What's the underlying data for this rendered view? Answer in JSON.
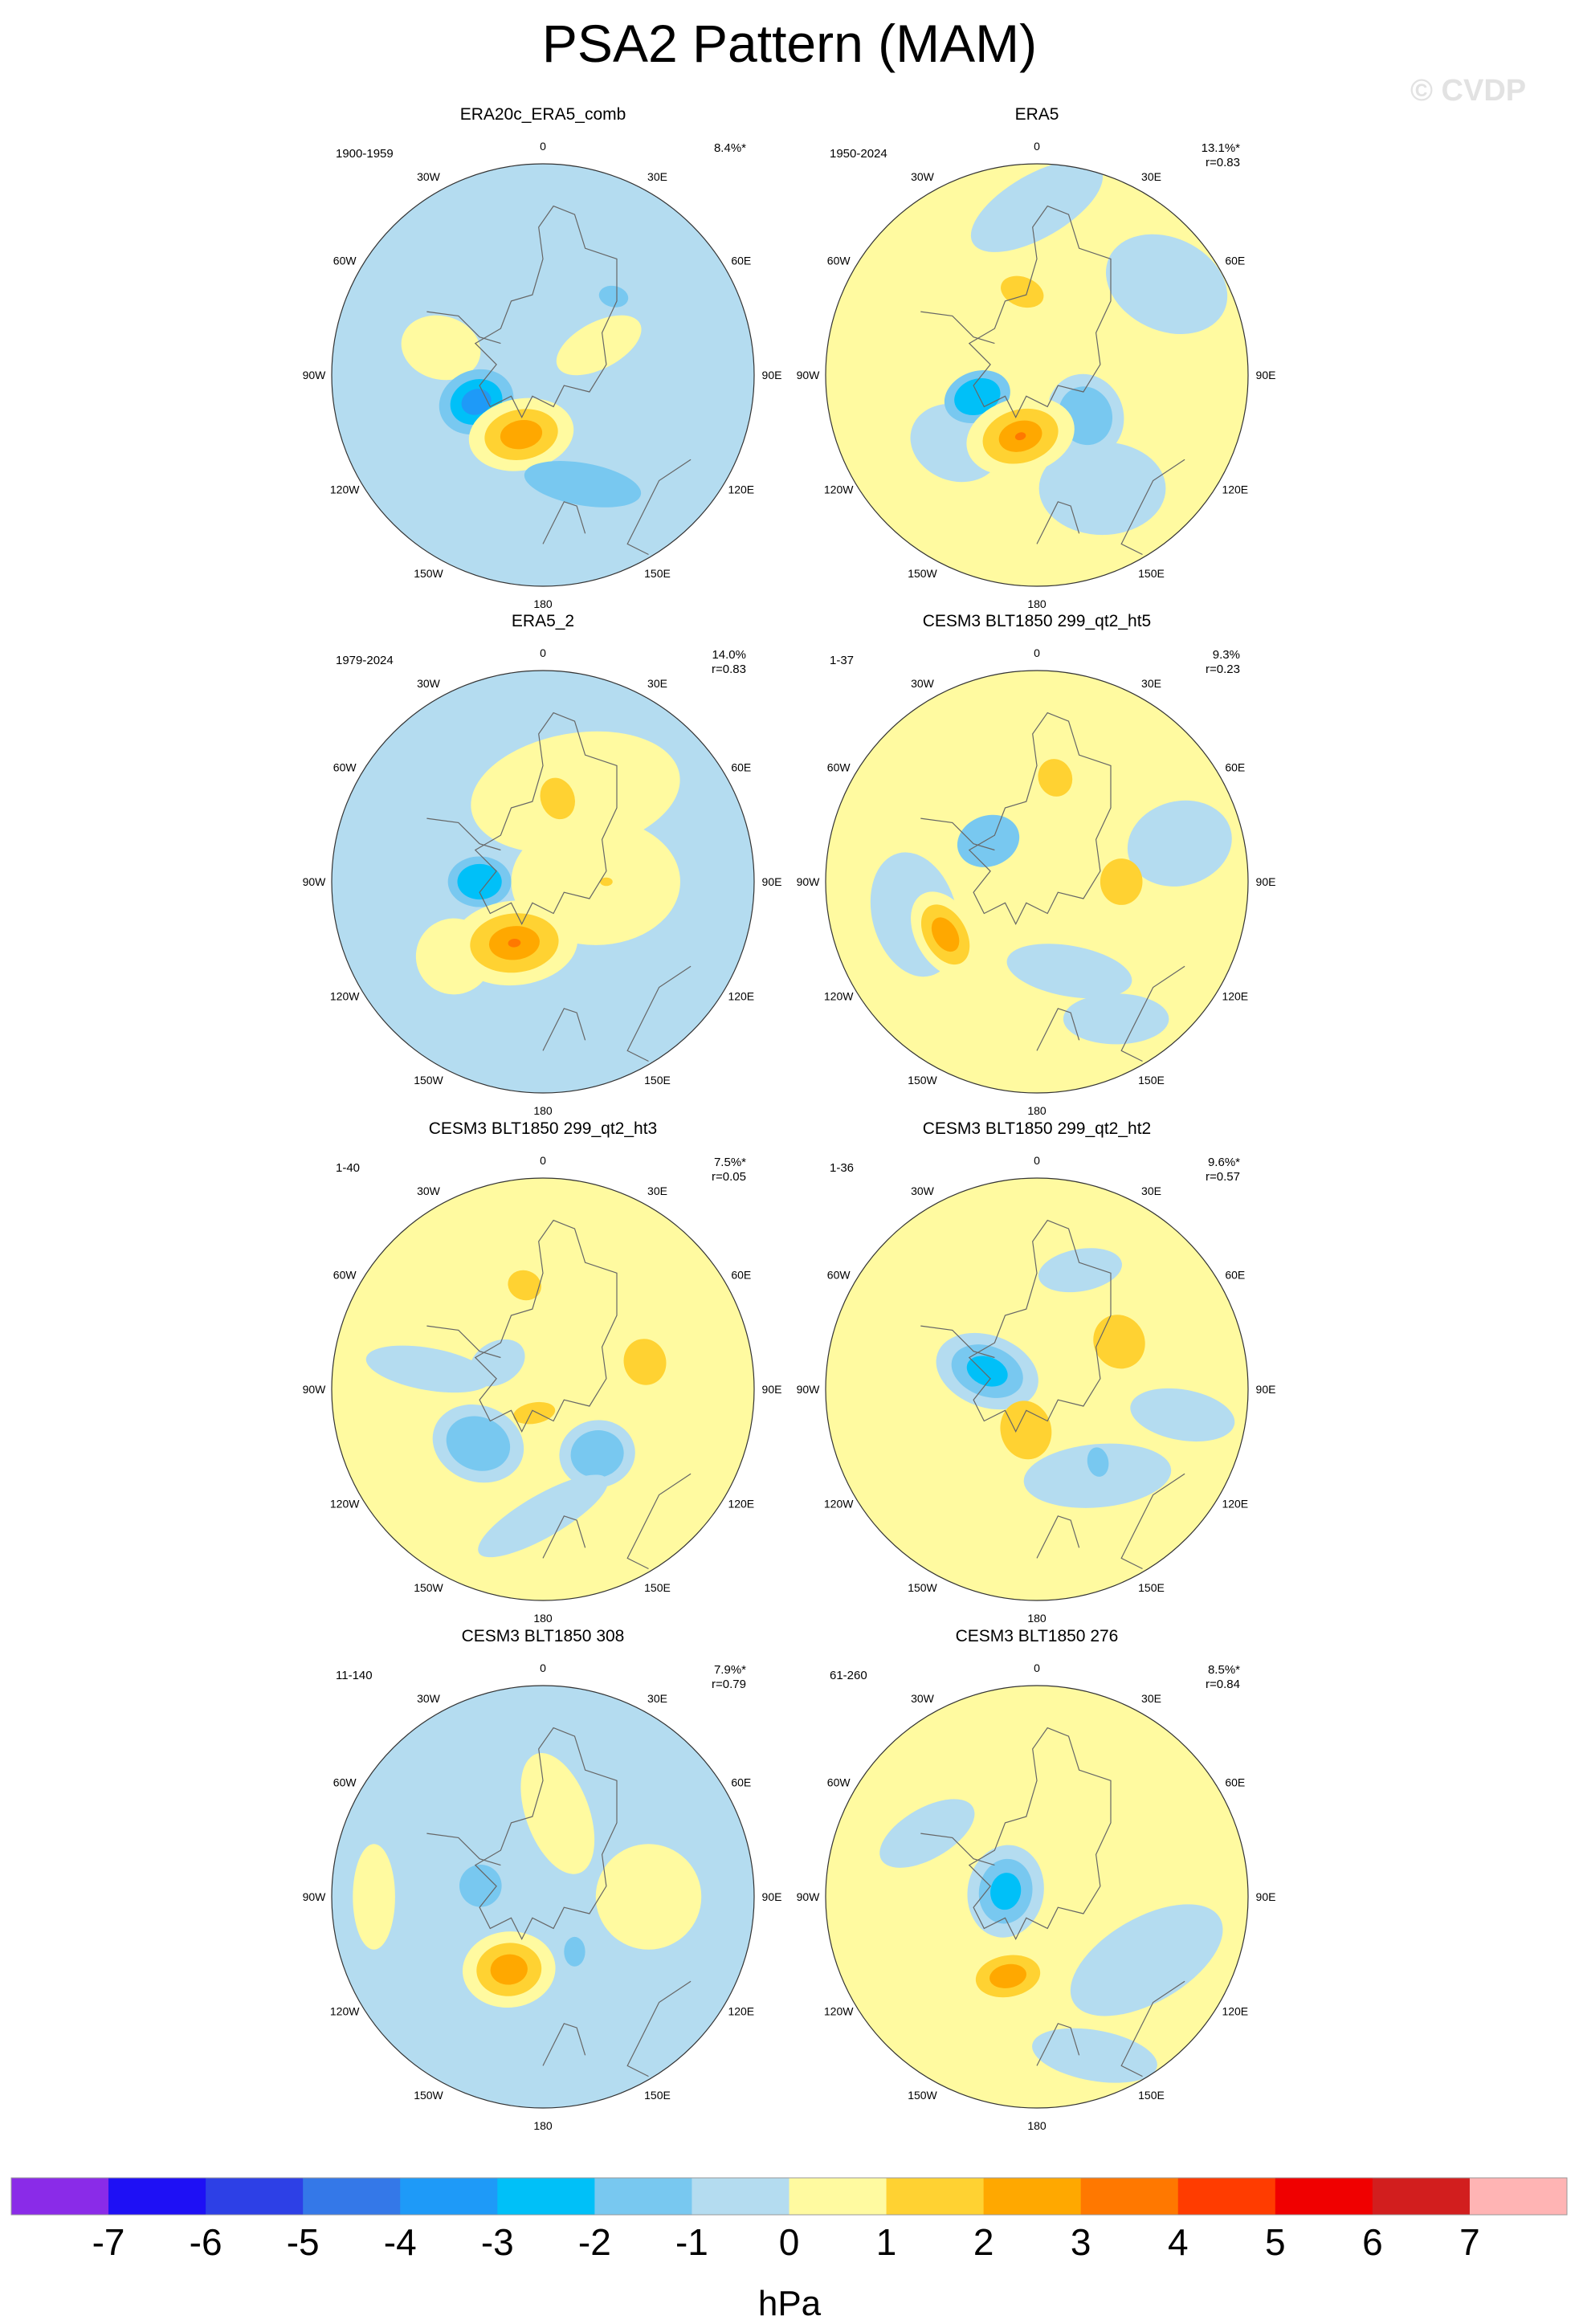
{
  "figure": {
    "title": "PSA2 Pattern (MAM)",
    "watermark": "© CVDP",
    "units": "hPa"
  },
  "panels": [
    {
      "title": "ERA20c_ERA5_comb",
      "period": "1900-1959",
      "pct": "8.4%*",
      "r": ""
    },
    {
      "title": "ERA5",
      "period": "1950-2024",
      "pct": "13.1%*",
      "r": "r=0.83"
    },
    {
      "title": "ERA5_2",
      "period": "1979-2024",
      "pct": "14.0%",
      "r": "r=0.83"
    },
    {
      "title": "CESM3 BLT1850 299_qt2_ht5",
      "period": "1-37",
      "pct": "9.3%",
      "r": "r=0.23"
    },
    {
      "title": "CESM3 BLT1850 299_qt2_ht3",
      "period": "1-40",
      "pct": "7.5%*",
      "r": "r=0.05"
    },
    {
      "title": "CESM3 BLT1850 299_qt2_ht2",
      "period": "1-36",
      "pct": "9.6%*",
      "r": "r=0.57"
    },
    {
      "title": "CESM3 BLT1850 308",
      "period": "11-140",
      "pct": "7.9%*",
      "r": "r=0.79"
    },
    {
      "title": "CESM3 BLT1850 276",
      "period": "61-260",
      "pct": "8.5%*",
      "r": "r=0.84"
    }
  ],
  "longitude_labels": [
    "0",
    "30E",
    "60E",
    "90E",
    "120E",
    "150E",
    "180",
    "150W",
    "120W",
    "90W",
    "60W",
    "30W"
  ],
  "colorbar": {
    "tick_labels": [
      "-7",
      "-6",
      "-5",
      "-4",
      "-3",
      "-2",
      "-1",
      "0",
      "1",
      "2",
      "3",
      "4",
      "5",
      "6",
      "7"
    ],
    "colors": [
      "#8a2be8",
      "#1e10f5",
      "#2d40e6",
      "#3478e8",
      "#1e9af8",
      "#00c0f8",
      "#78c8f0",
      "#b4dcf0",
      "#fffaa0",
      "#ffd232",
      "#ffa800",
      "#ff7800",
      "#ff3c00",
      "#f00000",
      "#d21e1e",
      "#ffb4b4"
    ]
  },
  "map_fields": [
    {
      "background": 7,
      "blobs": [
        {
          "a": 285,
          "d": 0.5,
          "rx": 0.19,
          "ry": 0.15,
          "levels": [
            8
          ]
        },
        {
          "a": 62,
          "d": 0.3,
          "rx": 0.22,
          "ry": 0.11,
          "levels": [
            8
          ]
        },
        {
          "a": 248,
          "d": 0.34,
          "rx": 0.18,
          "ry": 0.15,
          "levels": [
            6,
            5,
            4
          ]
        },
        {
          "a": 200,
          "d": 0.3,
          "rx": 0.25,
          "ry": 0.17,
          "levels": [
            8,
            9,
            10
          ]
        },
        {
          "a": 160,
          "d": 0.55,
          "rx": 0.28,
          "ry": 0.1,
          "levels": [
            6
          ]
        },
        {
          "a": 42,
          "d": 0.5,
          "rx": 0.07,
          "ry": 0.05,
          "levels": [
            6
          ]
        }
      ]
    },
    {
      "background": 8,
      "blobs": [
        {
          "a": 0,
          "d": 0.8,
          "rx": 0.35,
          "ry": 0.15,
          "levels": [
            7
          ]
        },
        {
          "a": 55,
          "d": 0.75,
          "rx": 0.3,
          "ry": 0.22,
          "levels": [
            7
          ]
        },
        {
          "a": 230,
          "d": 0.5,
          "rx": 0.22,
          "ry": 0.18,
          "levels": [
            7
          ]
        },
        {
          "a": 150,
          "d": 0.62,
          "rx": 0.3,
          "ry": 0.22,
          "levels": [
            7
          ]
        },
        {
          "a": 130,
          "d": 0.3,
          "rx": 0.18,
          "ry": 0.2,
          "levels": [
            7,
            6
          ]
        },
        {
          "a": 350,
          "d": 0.4,
          "rx": 0.15,
          "ry": 0.1,
          "levels": [
            8,
            9
          ]
        },
        {
          "a": 250,
          "d": 0.3,
          "rx": 0.16,
          "ry": 0.12,
          "levels": [
            6,
            5
          ]
        },
        {
          "a": 195,
          "d": 0.3,
          "rx": 0.26,
          "ry": 0.18,
          "levels": [
            8,
            9,
            10,
            11
          ]
        }
      ]
    },
    {
      "background": 7,
      "blobs": [
        {
          "a": 20,
          "d": 0.45,
          "rx": 0.5,
          "ry": 0.28,
          "levels": [
            8
          ]
        },
        {
          "a": 90,
          "d": 0.25,
          "rx": 0.4,
          "ry": 0.3,
          "levels": [
            8
          ]
        },
        {
          "a": 230,
          "d": 0.55,
          "rx": 0.18,
          "ry": 0.18,
          "levels": [
            8
          ]
        },
        {
          "a": 10,
          "d": 0.4,
          "rx": 0.08,
          "ry": 0.1,
          "levels": [
            9
          ]
        },
        {
          "a": 270,
          "d": 0.3,
          "rx": 0.15,
          "ry": 0.12,
          "levels": [
            6,
            5
          ]
        },
        {
          "a": 205,
          "d": 0.32,
          "rx": 0.3,
          "ry": 0.2,
          "levels": [
            8,
            9,
            10,
            11
          ]
        },
        {
          "a": 90,
          "d": 0.3,
          "rx": 0.03,
          "ry": 0.02,
          "levels": [
            9
          ]
        }
      ]
    },
    {
      "background": 8,
      "blobs": [
        {
          "a": 255,
          "d": 0.6,
          "rx": 0.2,
          "ry": 0.3,
          "levels": [
            7
          ]
        },
        {
          "a": 160,
          "d": 0.45,
          "rx": 0.3,
          "ry": 0.12,
          "levels": [
            7
          ]
        },
        {
          "a": 75,
          "d": 0.7,
          "rx": 0.25,
          "ry": 0.2,
          "levels": [
            7
          ]
        },
        {
          "a": 150,
          "d": 0.75,
          "rx": 0.25,
          "ry": 0.12,
          "levels": [
            7
          ]
        },
        {
          "a": 310,
          "d": 0.3,
          "rx": 0.15,
          "ry": 0.12,
          "levels": [
            6
          ]
        },
        {
          "a": 10,
          "d": 0.5,
          "rx": 0.08,
          "ry": 0.09,
          "levels": [
            9
          ]
        },
        {
          "a": 90,
          "d": 0.4,
          "rx": 0.1,
          "ry": 0.11,
          "levels": [
            9
          ]
        },
        {
          "a": 240,
          "d": 0.5,
          "rx": 0.14,
          "ry": 0.22,
          "levels": [
            8,
            9,
            10
          ]
        }
      ]
    },
    {
      "background": 8,
      "blobs": [
        {
          "a": 280,
          "d": 0.55,
          "rx": 0.3,
          "ry": 0.1,
          "levels": [
            7
          ]
        },
        {
          "a": 230,
          "d": 0.4,
          "rx": 0.22,
          "ry": 0.18,
          "levels": [
            7,
            6
          ]
        },
        {
          "a": 140,
          "d": 0.4,
          "rx": 0.18,
          "ry": 0.16,
          "levels": [
            7,
            6
          ]
        },
        {
          "a": 180,
          "d": 0.6,
          "rx": 0.35,
          "ry": 0.1,
          "levels": [
            7
          ]
        },
        {
          "a": 300,
          "d": 0.25,
          "rx": 0.14,
          "ry": 0.1,
          "levels": [
            7
          ]
        },
        {
          "a": 350,
          "d": 0.5,
          "rx": 0.08,
          "ry": 0.07,
          "levels": [
            9
          ]
        },
        {
          "a": 75,
          "d": 0.5,
          "rx": 0.1,
          "ry": 0.11,
          "levels": [
            9
          ]
        },
        {
          "a": 200,
          "d": 0.12,
          "rx": 0.1,
          "ry": 0.05,
          "levels": [
            9
          ]
        }
      ]
    },
    {
      "background": 8,
      "blobs": [
        {
          "a": 145,
          "d": 0.5,
          "rx": 0.35,
          "ry": 0.15,
          "levels": [
            7
          ]
        },
        {
          "a": 100,
          "d": 0.7,
          "rx": 0.25,
          "ry": 0.12,
          "levels": [
            7
          ]
        },
        {
          "a": 20,
          "d": 0.6,
          "rx": 0.2,
          "ry": 0.1,
          "levels": [
            7
          ]
        },
        {
          "a": 290,
          "d": 0.25,
          "rx": 0.25,
          "ry": 0.17,
          "levels": [
            7,
            6,
            5
          ]
        },
        {
          "a": 60,
          "d": 0.45,
          "rx": 0.12,
          "ry": 0.13,
          "levels": [
            9
          ]
        },
        {
          "a": 195,
          "d": 0.2,
          "rx": 0.12,
          "ry": 0.14,
          "levels": [
            9
          ]
        },
        {
          "a": 140,
          "d": 0.45,
          "rx": 0.05,
          "ry": 0.07,
          "levels": [
            6
          ]
        }
      ]
    },
    {
      "background": 7,
      "blobs": [
        {
          "a": 10,
          "d": 0.4,
          "rx": 0.15,
          "ry": 0.3,
          "levels": [
            8
          ]
        },
        {
          "a": 90,
          "d": 0.5,
          "rx": 0.25,
          "ry": 0.25,
          "levels": [
            8
          ]
        },
        {
          "a": 270,
          "d": 0.8,
          "rx": 0.1,
          "ry": 0.25,
          "levels": [
            8
          ]
        },
        {
          "a": 280,
          "d": 0.3,
          "rx": 0.1,
          "ry": 0.1,
          "levels": [
            6
          ]
        },
        {
          "a": 205,
          "d": 0.38,
          "rx": 0.22,
          "ry": 0.18,
          "levels": [
            8,
            9,
            10
          ]
        },
        {
          "a": 150,
          "d": 0.3,
          "rx": 0.05,
          "ry": 0.07,
          "levels": [
            6
          ]
        }
      ]
    },
    {
      "background": 8,
      "blobs": [
        {
          "a": 120,
          "d": 0.6,
          "rx": 0.4,
          "ry": 0.2,
          "levels": [
            7
          ]
        },
        {
          "a": 160,
          "d": 0.8,
          "rx": 0.3,
          "ry": 0.12,
          "levels": [
            7
          ]
        },
        {
          "a": 300,
          "d": 0.6,
          "rx": 0.25,
          "ry": 0.12,
          "levels": [
            7
          ]
        },
        {
          "a": 280,
          "d": 0.15,
          "rx": 0.18,
          "ry": 0.22,
          "levels": [
            7,
            6,
            5
          ]
        },
        {
          "a": 200,
          "d": 0.4,
          "rx": 0.22,
          "ry": 0.14,
          "levels": [
            8,
            9,
            10
          ]
        }
      ]
    }
  ]
}
